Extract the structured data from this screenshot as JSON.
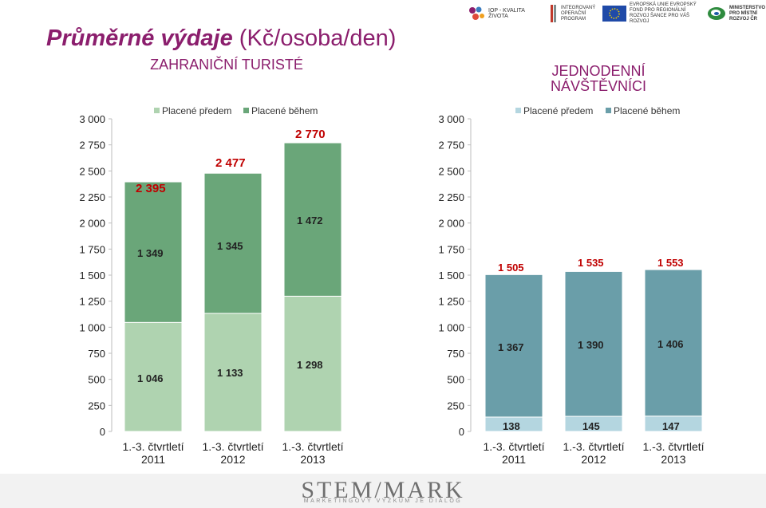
{
  "header": {
    "title_bold": "Průměrné výdaje",
    "title_unit": "(Kč/osoba/den)",
    "logo_iop": "IOP - KVALITA ŽIVOTA",
    "logo_op": "INTEGROVANÝ OPERAČNÍ PROGRAM",
    "logo_eu": "EVROPSKÁ UNIE EVROPSKÝ FOND PRO REGIONÁLNÍ ROZVOJ ŠANCE PRO VÁŠ ROZVOJ",
    "logo_mmr": "MINISTERSTVO PRO MÍSTNÍ ROZVOJ ČR"
  },
  "footer": {
    "brand": "STEM/MARK",
    "tagline": "MARKETINGOVÝ VÝZKUM JE DIALOG"
  },
  "colors": {
    "title": "#8b1e6d",
    "label_red": "#c00000",
    "left_before": "#afd3b0",
    "left_during": "#6aa679",
    "right_before": "#b4d6e0",
    "right_during": "#6a9ea9"
  },
  "chart_data": [
    {
      "type": "bar",
      "stacked": true,
      "title": "ZAHRANIČNÍ TURISTÉ",
      "categories": [
        "1.-3. čtvrtletí 2011",
        "1.-3. čtvrtletí 2012",
        "1.-3. čtvrtletí 2013"
      ],
      "series": [
        {
          "name": "Placené předem",
          "values": [
            1046,
            1133,
            1298
          ]
        },
        {
          "name": "Placené během",
          "values": [
            1349,
            1345,
            1472
          ]
        }
      ],
      "totals": [
        2395,
        2477,
        2770
      ],
      "ylim": [
        0,
        3000
      ],
      "yticks": [
        0,
        250,
        500,
        750,
        1000,
        1250,
        1500,
        1750,
        2000,
        2250,
        2500,
        2750,
        3000
      ],
      "ytick_labels": [
        "0",
        "250",
        "500",
        "750",
        "1 000",
        "1 250",
        "1 500",
        "1 750",
        "2 000",
        "2 250",
        "2 500",
        "2 750",
        "3 000"
      ],
      "value_labels_before": [
        "1 046",
        "1 133",
        "1 298"
      ],
      "value_labels_during": [
        "1 349",
        "1 345",
        "1 472"
      ],
      "total_labels": [
        "2 395",
        "2 477",
        "2 770"
      ],
      "legend": "top",
      "grid": false
    },
    {
      "type": "bar",
      "stacked": true,
      "title": "JEDNODENNÍ NÁVŠTĚVNÍCI",
      "categories": [
        "1.-3. čtvrtletí 2011",
        "1.-3. čtvrtletí 2012",
        "1.-3. čtvrtletí 2013"
      ],
      "series": [
        {
          "name": "Placené předem",
          "values": [
            138,
            145,
            147
          ]
        },
        {
          "name": "Placené během",
          "values": [
            1367,
            1390,
            1406
          ]
        }
      ],
      "totals": [
        1505,
        1535,
        1553
      ],
      "ylim": [
        0,
        3000
      ],
      "yticks": [
        0,
        250,
        500,
        750,
        1000,
        1250,
        1500,
        1750,
        2000,
        2250,
        2500,
        2750,
        3000
      ],
      "ytick_labels": [
        "0",
        "250",
        "500",
        "750",
        "1 000",
        "1 250",
        "1 500",
        "1 750",
        "2 000",
        "2 250",
        "2 500",
        "2 750",
        "3 000"
      ],
      "value_labels_before": [
        "138",
        "145",
        "147"
      ],
      "value_labels_during": [
        "1 367",
        "1 390",
        "1 406"
      ],
      "total_labels": [
        "1 505",
        "1 535",
        "1 553"
      ],
      "legend": "top",
      "grid": false
    }
  ]
}
